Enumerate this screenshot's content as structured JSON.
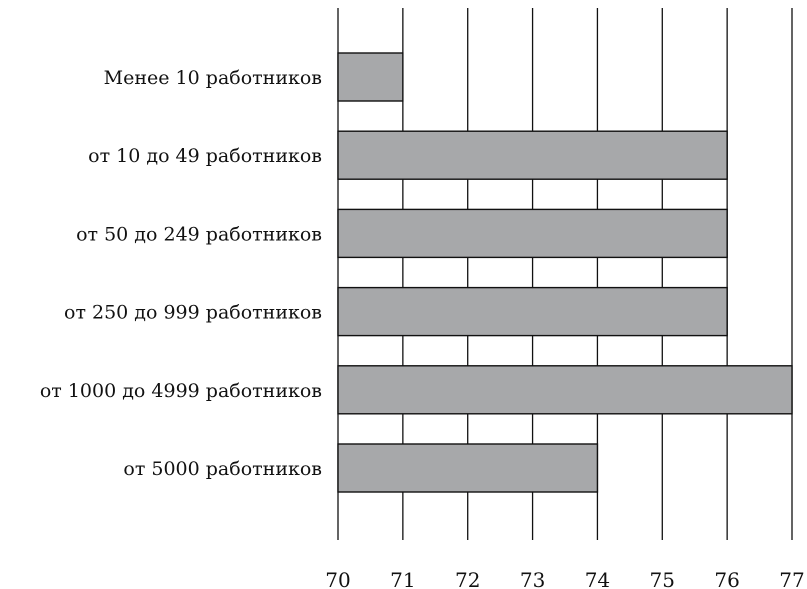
{
  "chart_data": {
    "type": "bar",
    "orientation": "horizontal",
    "title": "",
    "xlabel": "",
    "ylabel": "",
    "categories": [
      "Менее 10 работников",
      "от 10 до 49 работников",
      "от 50 до 249 работников",
      "от 250 до 999 работников",
      "от 1000 до 4999 работников",
      "от 5000 работников"
    ],
    "values": [
      71,
      76,
      76,
      76,
      77,
      74
    ],
    "xlim": [
      70,
      77
    ],
    "xticks": [
      "70",
      "71",
      "72",
      "73",
      "74",
      "75",
      "76",
      "77"
    ],
    "grid": "vertical",
    "bar_color": "#a7a8aa",
    "line_color": "#111111"
  }
}
